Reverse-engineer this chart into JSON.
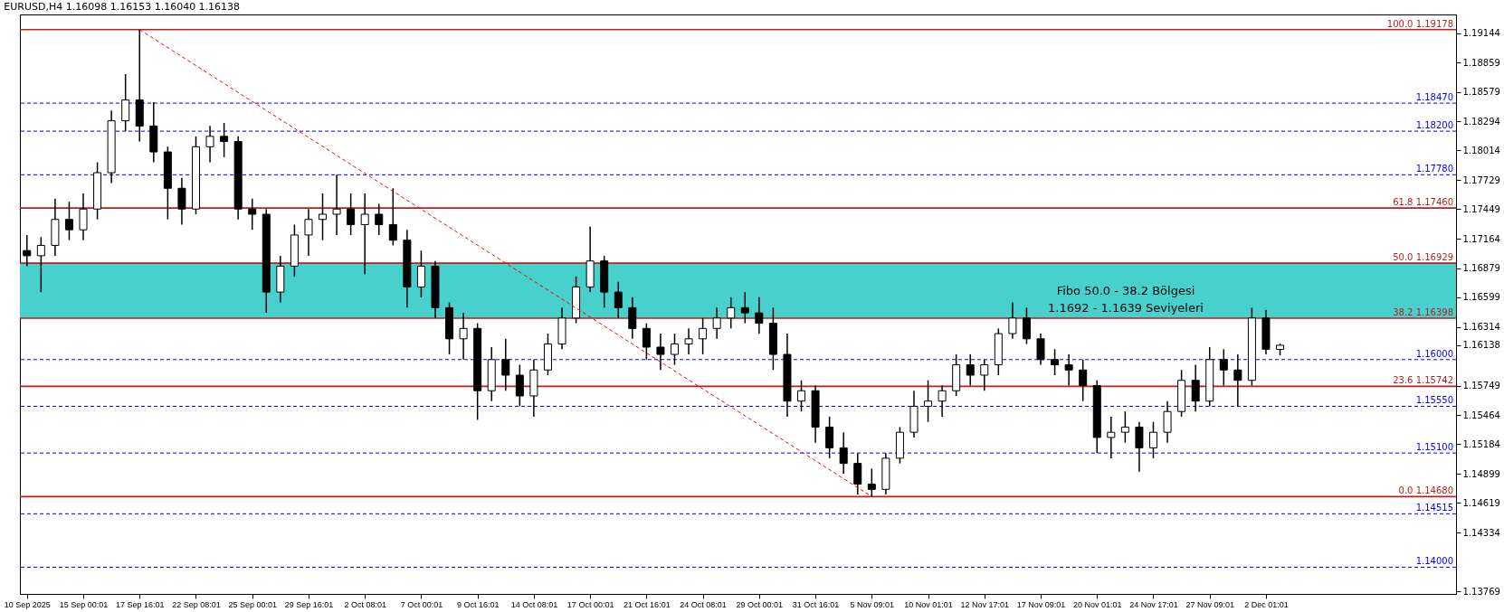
{
  "chart_data": {
    "type": "candlestick",
    "title": "EURUSD,H4  1.16098 1.16153 1.16040 1.16138",
    "categories": [
      "10 Sep 2025",
      null,
      null,
      null,
      "15 Sep 00:01",
      null,
      null,
      null,
      "17 Sep 16:01",
      null,
      null,
      null,
      "22 Sep 08:01",
      null,
      null,
      null,
      "25 Sep 00:01",
      null,
      null,
      null,
      "29 Sep 16:01",
      null,
      null,
      null,
      "2 Oct 08:01",
      null,
      null,
      null,
      "7 Oct 00:01",
      null,
      null,
      null,
      "9 Oct 16:01",
      null,
      null,
      null,
      "14 Oct 08:01",
      null,
      null,
      null,
      "17 Oct 00:01",
      null,
      null,
      null,
      "21 Oct 16:01",
      null,
      null,
      null,
      "24 Oct 08:01",
      null,
      null,
      null,
      "29 Oct 00:01",
      null,
      null,
      null,
      "31 Oct 16:01",
      null,
      null,
      null,
      "5 Nov 09:01",
      null,
      null,
      null,
      "10 Nov 01:01",
      null,
      null,
      null,
      "12 Nov 17:01",
      null,
      null,
      null,
      "17 Nov 09:01",
      null,
      null,
      null,
      "20 Nov 01:01",
      null,
      null,
      null,
      "24 Nov 17:01",
      null,
      null,
      null,
      "27 Nov 09:01",
      null,
      null,
      null,
      "2 Dec 01:01",
      null,
      null,
      null,
      null,
      null,
      null,
      null,
      null,
      null,
      null,
      null,
      null,
      null
    ],
    "ohlc": [
      [
        1.1705,
        1.172,
        1.169,
        1.17
      ],
      [
        1.17,
        1.1718,
        1.1665,
        1.171
      ],
      [
        1.171,
        1.1755,
        1.17,
        1.1735
      ],
      [
        1.1735,
        1.1752,
        1.1715,
        1.1725
      ],
      [
        1.1725,
        1.176,
        1.1715,
        1.1745
      ],
      [
        1.1745,
        1.179,
        1.1735,
        1.178
      ],
      [
        1.178,
        1.184,
        1.177,
        1.183
      ],
      [
        1.183,
        1.1875,
        1.182,
        1.185
      ],
      [
        1.185,
        1.19178,
        1.181,
        1.1825
      ],
      [
        1.1825,
        1.1848,
        1.179,
        1.18
      ],
      [
        1.18,
        1.1805,
        1.1735,
        1.1765
      ],
      [
        1.1765,
        1.1775,
        1.173,
        1.1745
      ],
      [
        1.1745,
        1.1815,
        1.174,
        1.1805
      ],
      [
        1.1805,
        1.1825,
        1.179,
        1.1815
      ],
      [
        1.1815,
        1.1828,
        1.1795,
        1.181
      ],
      [
        1.181,
        1.1815,
        1.1735,
        1.1745
      ],
      [
        1.1745,
        1.1755,
        1.1725,
        1.174
      ],
      [
        1.174,
        1.1745,
        1.1645,
        1.1665
      ],
      [
        1.1665,
        1.17,
        1.1655,
        1.169
      ],
      [
        1.169,
        1.173,
        1.168,
        1.172
      ],
      [
        1.172,
        1.1745,
        1.17,
        1.1735
      ],
      [
        1.1735,
        1.176,
        1.1715,
        1.174
      ],
      [
        1.174,
        1.1778,
        1.172,
        1.1745
      ],
      [
        1.1745,
        1.176,
        1.172,
        1.173
      ],
      [
        1.173,
        1.176,
        1.1682,
        1.174
      ],
      [
        1.174,
        1.175,
        1.172,
        1.173
      ],
      [
        1.173,
        1.1765,
        1.171,
        1.1715
      ],
      [
        1.1715,
        1.1725,
        1.165,
        1.167
      ],
      [
        1.167,
        1.1705,
        1.166,
        1.169
      ],
      [
        1.169,
        1.1695,
        1.164,
        1.165
      ],
      [
        1.165,
        1.1655,
        1.1605,
        1.162
      ],
      [
        1.162,
        1.1645,
        1.16,
        1.163
      ],
      [
        1.163,
        1.1635,
        1.1542,
        1.157
      ],
      [
        1.157,
        1.1612,
        1.156,
        1.16
      ],
      [
        1.16,
        1.162,
        1.157,
        1.1585
      ],
      [
        1.1585,
        1.1595,
        1.1555,
        1.1565
      ],
      [
        1.1565,
        1.16,
        1.1545,
        1.159
      ],
      [
        1.159,
        1.1625,
        1.1585,
        1.1615
      ],
      [
        1.1615,
        1.165,
        1.161,
        1.164
      ],
      [
        1.164,
        1.168,
        1.1635,
        1.167
      ],
      [
        1.167,
        1.1728,
        1.1665,
        1.1695
      ],
      [
        1.1695,
        1.17,
        1.165,
        1.1665
      ],
      [
        1.1665,
        1.1675,
        1.164,
        1.165
      ],
      [
        1.165,
        1.166,
        1.162,
        1.163
      ],
      [
        1.163,
        1.1635,
        1.16,
        1.1612
      ],
      [
        1.1612,
        1.1625,
        1.159,
        1.1605
      ],
      [
        1.1605,
        1.1625,
        1.1595,
        1.1615
      ],
      [
        1.1615,
        1.163,
        1.1605,
        1.162
      ],
      [
        1.162,
        1.164,
        1.1605,
        1.163
      ],
      [
        1.163,
        1.165,
        1.162,
        1.164
      ],
      [
        1.164,
        1.166,
        1.163,
        1.165
      ],
      [
        1.165,
        1.1665,
        1.1635,
        1.1645
      ],
      [
        1.1645,
        1.166,
        1.1625,
        1.1635
      ],
      [
        1.1635,
        1.165,
        1.159,
        1.1605
      ],
      [
        1.1605,
        1.1625,
        1.1545,
        1.156
      ],
      [
        1.156,
        1.158,
        1.155,
        1.157
      ],
      [
        1.157,
        1.1575,
        1.152,
        1.1535
      ],
      [
        1.1535,
        1.1545,
        1.1505,
        1.1515
      ],
      [
        1.1515,
        1.153,
        1.149,
        1.15
      ],
      [
        1.15,
        1.151,
        1.147,
        1.148
      ],
      [
        1.148,
        1.1495,
        1.1468,
        1.1475
      ],
      [
        1.1475,
        1.151,
        1.147,
        1.1505
      ],
      [
        1.1505,
        1.1535,
        1.15,
        1.153
      ],
      [
        1.153,
        1.157,
        1.1525,
        1.1555
      ],
      [
        1.1555,
        1.158,
        1.154,
        1.156
      ],
      [
        1.156,
        1.1575,
        1.1545,
        1.157
      ],
      [
        1.157,
        1.1605,
        1.1565,
        1.1595
      ],
      [
        1.1595,
        1.1605,
        1.1575,
        1.1585
      ],
      [
        1.1585,
        1.16,
        1.157,
        1.1595
      ],
      [
        1.1595,
        1.163,
        1.1585,
        1.1625
      ],
      [
        1.1625,
        1.1655,
        1.162,
        1.164
      ],
      [
        1.164,
        1.165,
        1.1615,
        1.162
      ],
      [
        1.162,
        1.1625,
        1.1595,
        1.16
      ],
      [
        1.16,
        1.161,
        1.1585,
        1.1595
      ],
      [
        1.1595,
        1.1605,
        1.1575,
        1.159
      ],
      [
        1.159,
        1.16,
        1.156,
        1.1575
      ],
      [
        1.1575,
        1.158,
        1.151,
        1.1525
      ],
      [
        1.1525,
        1.1545,
        1.1505,
        1.153
      ],
      [
        1.153,
        1.155,
        1.152,
        1.1535
      ],
      [
        1.1535,
        1.154,
        1.1492,
        1.1515
      ],
      [
        1.1515,
        1.154,
        1.1505,
        1.153
      ],
      [
        1.153,
        1.156,
        1.152,
        1.155
      ],
      [
        1.155,
        1.159,
        1.1545,
        1.158
      ],
      [
        1.158,
        1.1595,
        1.155,
        1.156
      ],
      [
        1.156,
        1.1612,
        1.1555,
        1.16
      ],
      [
        1.16,
        1.161,
        1.1575,
        1.159
      ],
      [
        1.159,
        1.1605,
        1.1555,
        1.158
      ],
      [
        1.158,
        1.165,
        1.1575,
        1.164
      ],
      [
        1.164,
        1.1648,
        1.1605,
        1.161
      ],
      [
        1.16098,
        1.16153,
        1.1604,
        1.16138
      ],
      null,
      null,
      null,
      null,
      null,
      null,
      null,
      null,
      null,
      null,
      null,
      null
    ],
    "series": [
      {
        "type": "line",
        "color": "#ff0000",
        "line_style": "dashed",
        "values": [
          null,
          null,
          null,
          null,
          null,
          null,
          null,
          null,
          1.19178,
          null,
          null,
          null,
          null,
          null,
          null,
          null,
          null,
          null,
          null,
          null,
          null,
          null,
          null,
          null,
          null,
          null,
          null,
          null,
          null,
          null,
          null,
          null,
          null,
          null,
          null,
          null,
          null,
          null,
          null,
          null,
          null,
          null,
          null,
          null,
          null,
          null,
          null,
          null,
          null,
          null,
          null,
          null,
          null,
          null,
          null,
          null,
          null,
          null,
          null,
          null,
          1.1468,
          null,
          null,
          null,
          null,
          null,
          null,
          null,
          null,
          null,
          null,
          null,
          null,
          null,
          null,
          null,
          null,
          null,
          null,
          null,
          null,
          null,
          null,
          null,
          null,
          null,
          null,
          null,
          null,
          null,
          null,
          null,
          null,
          null,
          null,
          null,
          null,
          null,
          null,
          null,
          null,
          null
        ]
      }
    ],
    "ylim": [
      1.13743,
      1.19324
    ],
    "yticks": [
      1.19144,
      1.18859,
      1.18579,
      1.18294,
      1.18014,
      1.17729,
      1.17449,
      1.17164,
      1.16879,
      1.16599,
      1.16314,
      {
        "value": 1.16138,
        "label": "1.16138"
      },
      1.15749,
      1.15464,
      1.15184,
      1.14899,
      1.14619,
      1.14334,
      1.13769
    ],
    "bands": [
      {
        "axis": "y",
        "from": 1.16398,
        "to": 1.16929,
        "color": "#48d1cc",
        "label": "Fibo 50.0 - 38.2 Bölgesi\n1.1692 - 1.1639 Seviyeleri"
      }
    ],
    "ref_lines": [
      {
        "axis": "y",
        "value": 1.19178,
        "label": "100.0 1.19178",
        "color": "#b22222",
        "line_style": "solid"
      },
      {
        "axis": "y",
        "value": 1.1746,
        "label": "61.8 1.17460",
        "color": "#b22222",
        "line_style": "solid"
      },
      {
        "axis": "y",
        "value": 1.16929,
        "label": "50.0 1.16929",
        "color": "#b22222",
        "line_style": "solid"
      },
      {
        "axis": "y",
        "value": 1.16398,
        "label": "38.2 1.16398",
        "color": "#b22222",
        "line_style": "solid"
      },
      {
        "axis": "y",
        "value": 1.15742,
        "label": "23.6 1.15742",
        "color": "#b22222",
        "line_style": "solid"
      },
      {
        "axis": "y",
        "value": 1.1468,
        "label": "0.0 1.14680",
        "color": "#b22222",
        "line_style": "solid"
      },
      {
        "axis": "y",
        "value": 1.1847,
        "label": "1.18470",
        "color": "#0000ff",
        "line_style": "dashed"
      },
      {
        "axis": "y",
        "value": 1.182,
        "label": "1.18200",
        "color": "#0000ff",
        "line_style": "dashed"
      },
      {
        "axis": "y",
        "value": 1.1778,
        "label": "1.17780",
        "color": "#0000ff",
        "line_style": "dashed"
      },
      {
        "axis": "y",
        "value": 1.16,
        "label": "1.16000",
        "color": "#0000ff",
        "line_style": "dashed"
      },
      {
        "axis": "y",
        "value": 1.1555,
        "label": "1.15550",
        "color": "#0000ff",
        "line_style": "dashed"
      },
      {
        "axis": "y",
        "value": 1.151,
        "label": "1.15100",
        "color": "#0000ff",
        "line_style": "dashed"
      },
      {
        "axis": "y",
        "value": 1.14515,
        "label": "1.14515",
        "color": "#0000ff",
        "line_style": "dashed"
      },
      {
        "axis": "y",
        "value": 1.14,
        "label": "1.14000",
        "color": "#0000ff",
        "line_style": "dashed"
      }
    ]
  }
}
